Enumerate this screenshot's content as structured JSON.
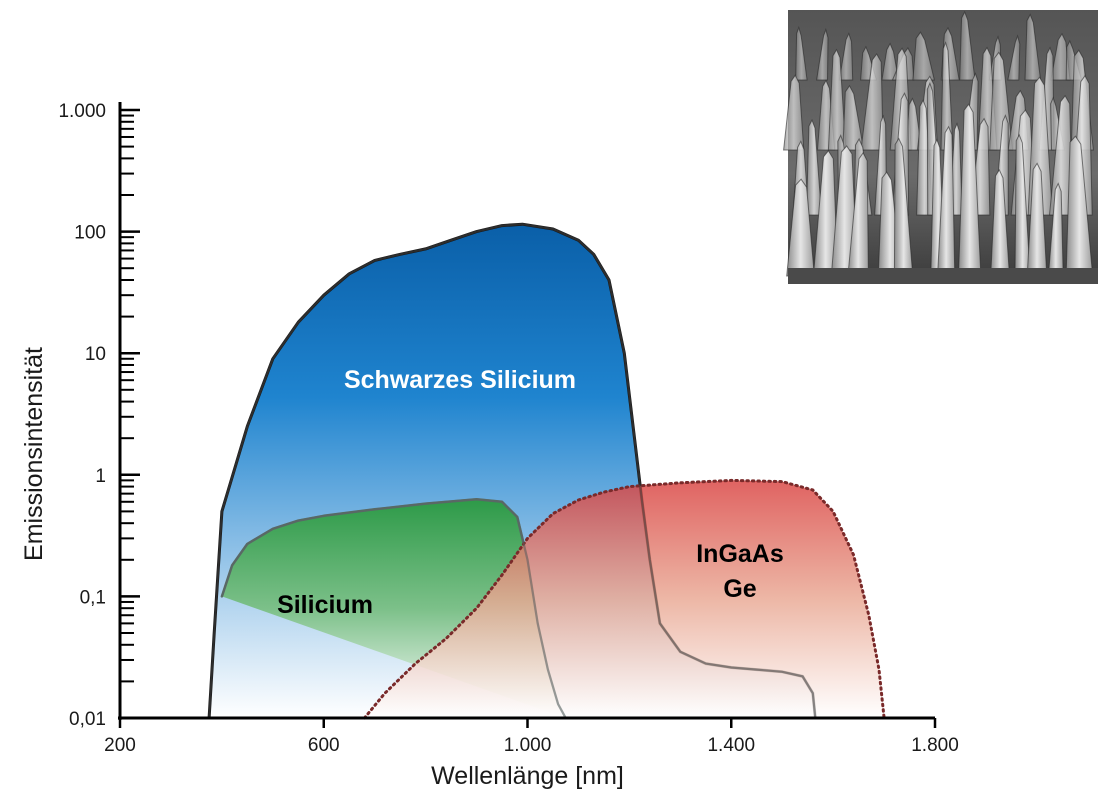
{
  "chart_data": {
    "type": "area",
    "title": "",
    "xlabel": "Wellenlänge [nm]",
    "ylabel": "Emissionsintensität",
    "xlim": [
      200,
      1800
    ],
    "ylim": [
      0.01,
      1000
    ],
    "y_scale": "log",
    "x_ticks": [
      200,
      600,
      1000,
      1400,
      1800
    ],
    "x_tick_labels": [
      "200",
      "600",
      "1.000",
      "1.400",
      "1.800"
    ],
    "y_ticks": [
      0.01,
      0.1,
      1,
      10,
      100,
      1000
    ],
    "y_tick_labels": [
      "0,01",
      "0,1",
      "1",
      "10",
      "100",
      "1.000"
    ],
    "grid": false,
    "series": [
      {
        "name": "Schwarzes Silicium",
        "label_lines": [
          "Schwarzes Silicium"
        ],
        "color": "#1a78c8",
        "x": [
          375,
          385,
          400,
          450,
          500,
          550,
          600,
          650,
          700,
          750,
          800,
          850,
          900,
          950,
          990,
          1050,
          1100,
          1130,
          1160,
          1190,
          1210,
          1225,
          1240,
          1260,
          1300,
          1350,
          1400,
          1450,
          1500,
          1540,
          1560,
          1565
        ],
        "values": [
          0.01,
          0.05,
          0.5,
          2.5,
          9,
          18,
          30,
          45,
          58,
          65,
          72,
          85,
          100,
          112,
          115,
          105,
          85,
          65,
          40,
          10,
          2,
          0.6,
          0.2,
          0.06,
          0.035,
          0.028,
          0.026,
          0.025,
          0.024,
          0.022,
          0.016,
          0.01
        ]
      },
      {
        "name": "Silicium",
        "label_lines": [
          "Silicium"
        ],
        "color": "#3b9a4e",
        "x": [
          400,
          420,
          450,
          500,
          550,
          600,
          700,
          800,
          900,
          950,
          980,
          1000,
          1020,
          1040,
          1060,
          1075
        ],
        "values": [
          0.1,
          0.18,
          0.27,
          0.36,
          0.42,
          0.46,
          0.52,
          0.58,
          0.63,
          0.6,
          0.45,
          0.2,
          0.06,
          0.025,
          0.013,
          0.01
        ]
      },
      {
        "name": "InGaAs Ge",
        "label_lines": [
          "InGaAs",
          "Ge"
        ],
        "color": "#d84848",
        "x": [
          680,
          720,
          780,
          840,
          900,
          950,
          1000,
          1050,
          1100,
          1150,
          1200,
          1300,
          1400,
          1500,
          1560,
          1600,
          1640,
          1670,
          1690,
          1700
        ],
        "values": [
          0.01,
          0.016,
          0.028,
          0.045,
          0.08,
          0.15,
          0.3,
          0.48,
          0.62,
          0.72,
          0.8,
          0.86,
          0.9,
          0.88,
          0.75,
          0.5,
          0.22,
          0.07,
          0.025,
          0.01
        ]
      }
    ]
  },
  "inset": {
    "name": "Schwarzes Silicium",
    "kind": "SEM-micrograph-spikes"
  }
}
